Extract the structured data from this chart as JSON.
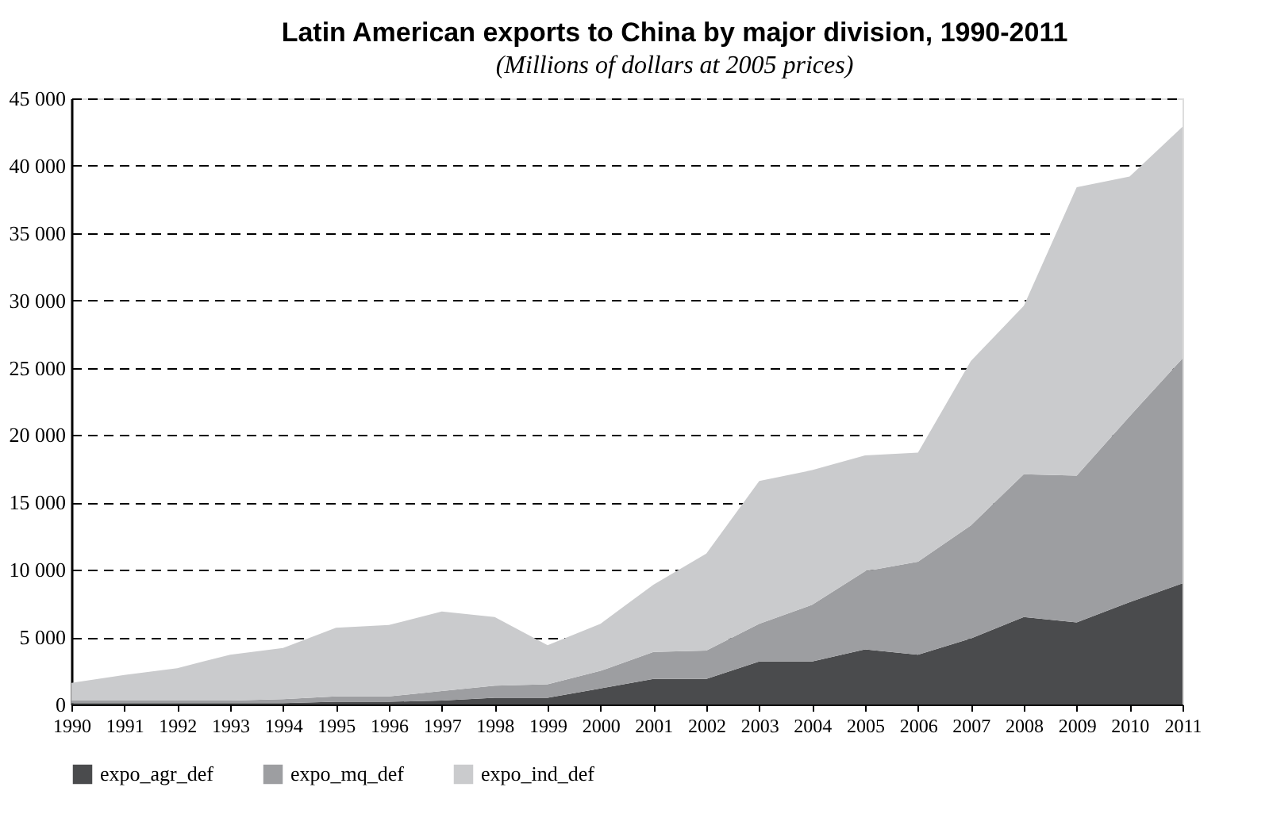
{
  "chart_data": {
    "type": "area",
    "title": "Latin American exports to China by major division, 1990-2011",
    "subtitle": "(Millions of dollars at 2005 prices)",
    "categories": [
      "1990",
      "1991",
      "1992",
      "1993",
      "1994",
      "1995",
      "1996",
      "1997",
      "1998",
      "1999",
      "2000",
      "2001",
      "2002",
      "2003",
      "2004",
      "2005",
      "2006",
      "2007",
      "2008",
      "2009",
      "2010",
      "2011"
    ],
    "stacked": true,
    "series": [
      {
        "name": "expo_agr_def",
        "color": "#4a4b4d",
        "values": [
          100,
          100,
          100,
          100,
          100,
          200,
          200,
          300,
          500,
          500,
          1200,
          1900,
          1900,
          3200,
          3200,
          4100,
          3700,
          4900,
          6500,
          6100,
          7600,
          9000
        ]
      },
      {
        "name": "expo_mq_def",
        "color": "#9d9ea1",
        "values": [
          200,
          200,
          200,
          200,
          300,
          400,
          400,
          700,
          900,
          1000,
          1300,
          2000,
          2100,
          2800,
          4200,
          5800,
          6900,
          8400,
          10600,
          10900,
          13800,
          16700
        ]
      },
      {
        "name": "expo_ind_def",
        "color": "#cacbcd",
        "values": [
          1300,
          1900,
          2400,
          3400,
          3800,
          5100,
          5300,
          5900,
          5100,
          2900,
          3500,
          5000,
          7200,
          10600,
          10000,
          8600,
          8100,
          12200,
          12500,
          21400,
          17800,
          17200
        ]
      }
    ],
    "ylim": [
      0,
      45000
    ],
    "yticks": [
      {
        "value": 0,
        "label": "0"
      },
      {
        "value": 5000,
        "label": "5 000"
      },
      {
        "value": 10000,
        "label": "10 000"
      },
      {
        "value": 15000,
        "label": "15 000"
      },
      {
        "value": 20000,
        "label": "20 000"
      },
      {
        "value": 25000,
        "label": "25 000"
      },
      {
        "value": 30000,
        "label": "30 000"
      },
      {
        "value": 35000,
        "label": "35 000"
      },
      {
        "value": 40000,
        "label": "40 000"
      },
      {
        "value": 45000,
        "label": "45 000"
      }
    ],
    "grid": "y",
    "legend": "bottom"
  }
}
